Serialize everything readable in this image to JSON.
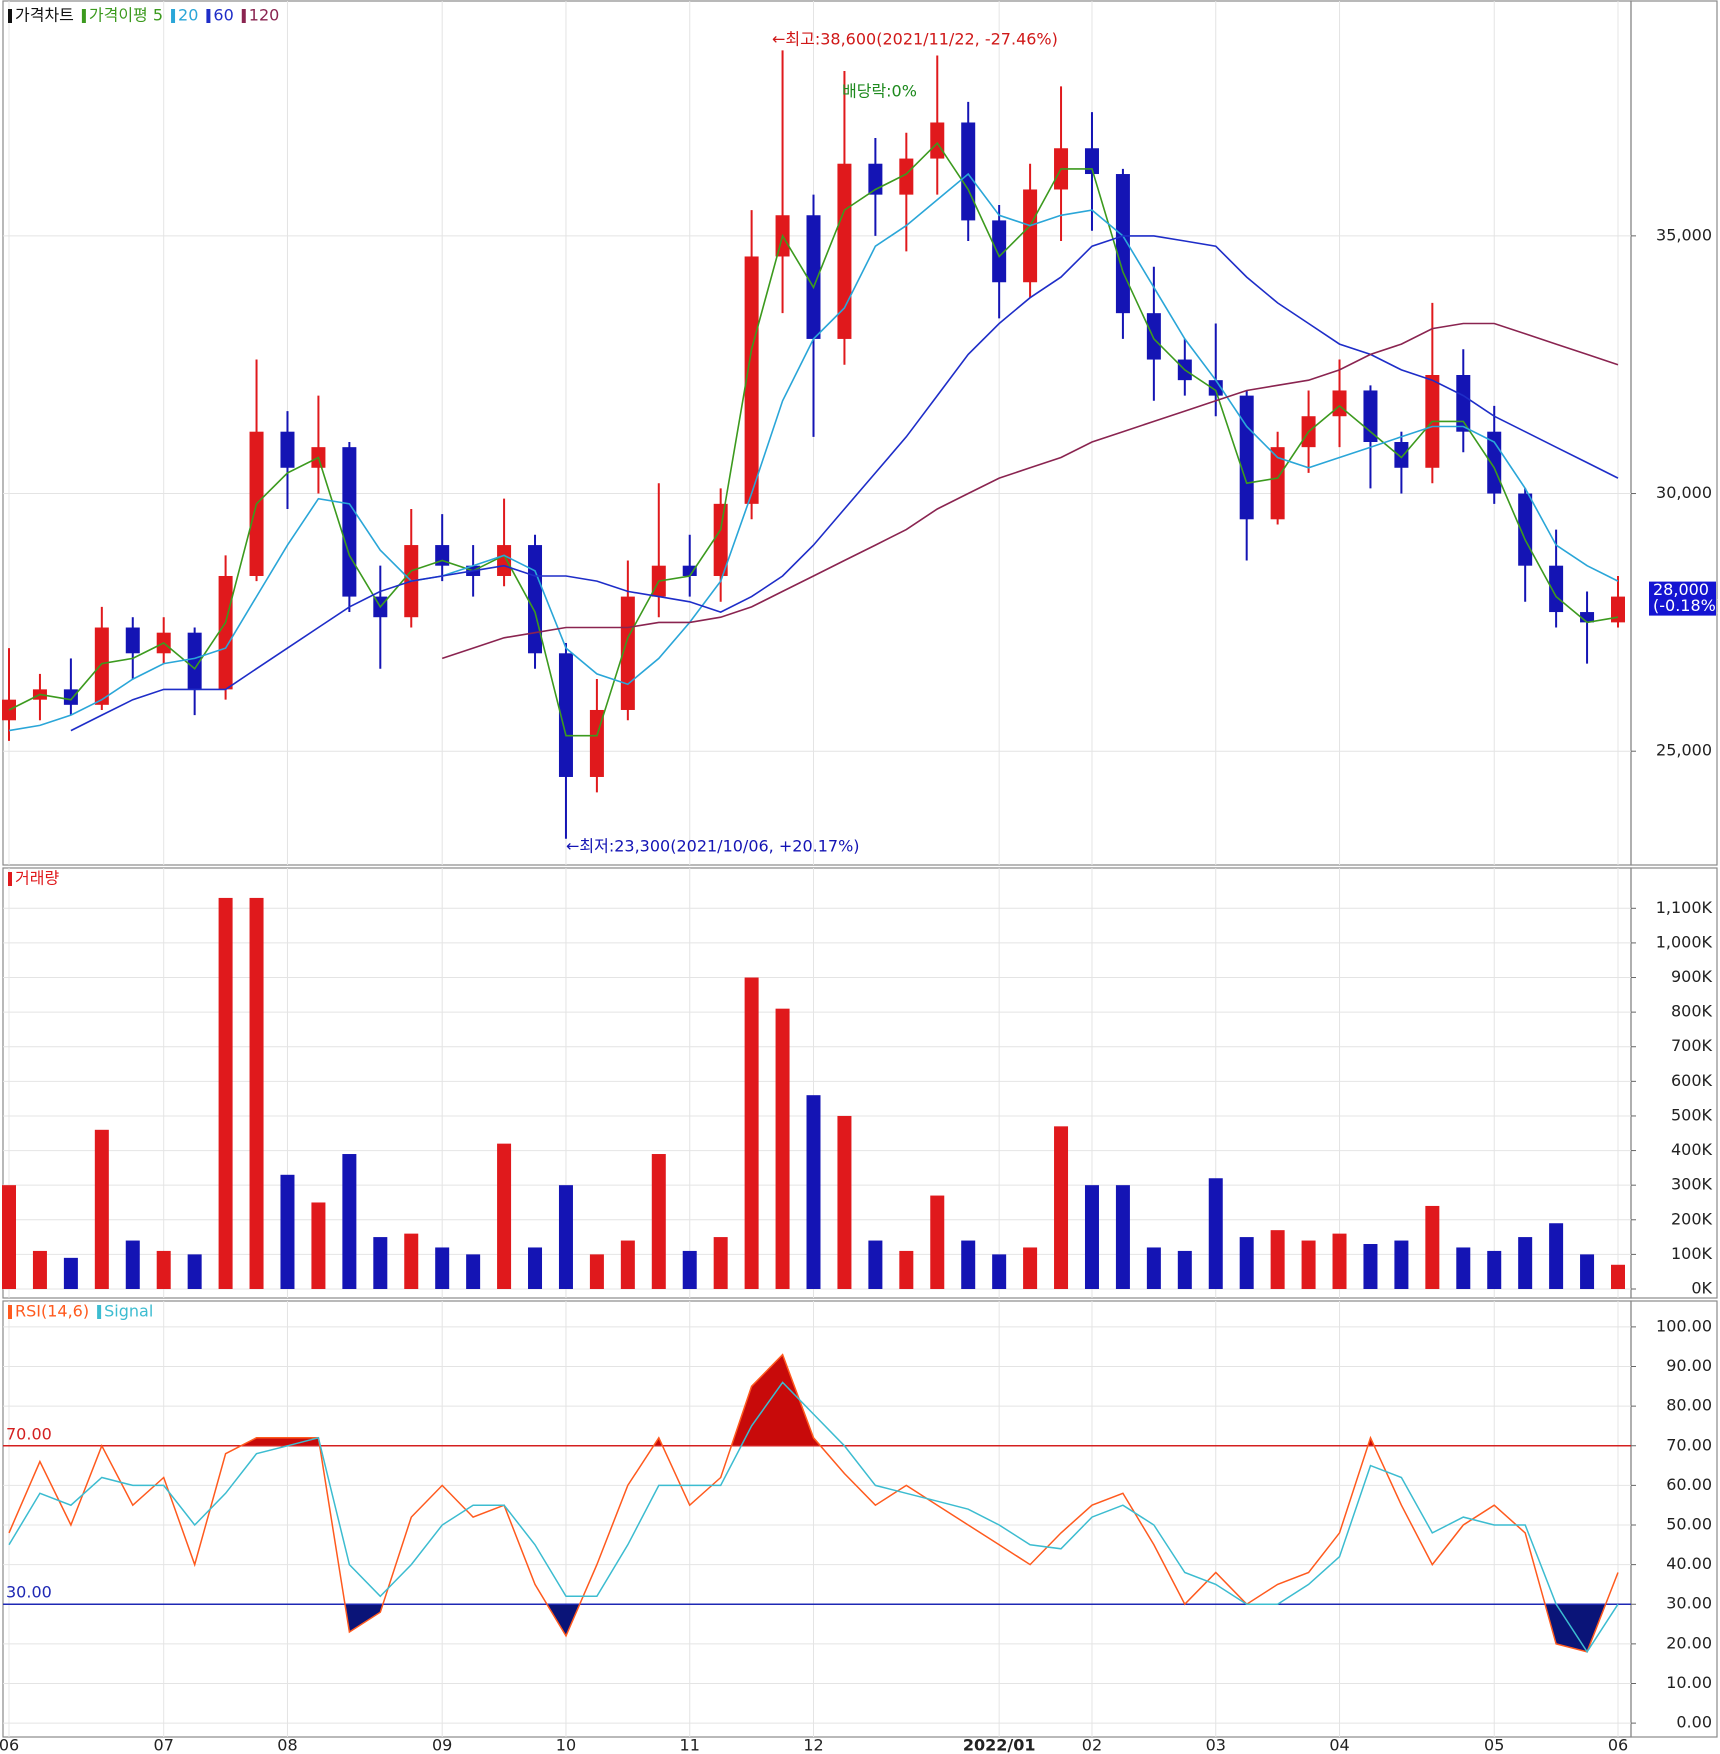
{
  "chart_data": [
    {
      "type": "candlestick",
      "name": "가격차트",
      "open": [
        25600,
        26000,
        26200,
        25900,
        27400,
        26900,
        27300,
        26200,
        28400,
        31200,
        30500,
        30900,
        28000,
        27600,
        29000,
        28600,
        28400,
        29000,
        26900,
        24500,
        25800,
        28000,
        28600,
        28400,
        29800,
        34600,
        35400,
        33000,
        36400,
        35800,
        36500,
        37200,
        35300,
        34100,
        35900,
        36700,
        36200,
        33500,
        32600,
        32200,
        31900,
        29500,
        30900,
        31500,
        32000,
        31000,
        30500,
        32300,
        31200,
        30000,
        28600,
        27700,
        27500
      ],
      "high": [
        27000,
        26500,
        26800,
        27800,
        27600,
        27600,
        27400,
        28800,
        32600,
        31600,
        31900,
        31000,
        28600,
        29700,
        29600,
        29000,
        29900,
        29200,
        27100,
        26400,
        28700,
        30200,
        29200,
        30100,
        35500,
        38600,
        35800,
        38200,
        36900,
        37000,
        38500,
        37600,
        35600,
        36400,
        37900,
        37400,
        36300,
        34400,
        33000,
        33300,
        32000,
        31200,
        32000,
        32600,
        32100,
        31200,
        33700,
        32800,
        31700,
        30100,
        29300,
        28100,
        28400
      ],
      "low": [
        25200,
        25600,
        25700,
        25800,
        26400,
        26700,
        25700,
        26000,
        28300,
        29700,
        30000,
        27700,
        26600,
        27400,
        28300,
        28000,
        28200,
        26600,
        23300,
        24200,
        25600,
        27600,
        28000,
        27900,
        29500,
        33500,
        31100,
        32500,
        35000,
        34700,
        35800,
        34900,
        33400,
        33800,
        34900,
        35100,
        33000,
        31800,
        31900,
        31500,
        28700,
        29400,
        30400,
        30900,
        30100,
        30000,
        30200,
        30800,
        29800,
        27900,
        27400,
        26700,
        27400
      ],
      "close": [
        26000,
        26200,
        25900,
        27400,
        26900,
        27300,
        26200,
        28400,
        31200,
        30500,
        30900,
        28000,
        27600,
        29000,
        28600,
        28400,
        29000,
        26900,
        24500,
        25800,
        28000,
        28600,
        28400,
        29800,
        34600,
        35400,
        33000,
        36400,
        35800,
        36500,
        37200,
        35300,
        34100,
        35900,
        36700,
        36200,
        33500,
        32600,
        32200,
        31900,
        29500,
        30900,
        31500,
        32000,
        31000,
        30500,
        32300,
        31200,
        30000,
        28600,
        27700,
        27500,
        28000
      ],
      "up_color": "#e0191c",
      "down_color": "#1414b4",
      "series": [
        {
          "name": "가격이평 5",
          "color": "#3c9a1e",
          "values": [
            25800,
            26100,
            26000,
            26700,
            26800,
            27100,
            26600,
            27500,
            29800,
            30400,
            30700,
            28800,
            27800,
            28500,
            28700,
            28500,
            28800,
            27700,
            25300,
            25300,
            27200,
            28300,
            28400,
            29300,
            32800,
            35000,
            34000,
            35500,
            35900,
            36200,
            36800,
            35900,
            34600,
            35200,
            36300,
            36300,
            34300,
            33000,
            32400,
            32000,
            30200,
            30300,
            31200,
            31700,
            31200,
            30700,
            31400,
            31400,
            30500,
            29100,
            28000,
            27500,
            27600
          ]
        },
        {
          "name": "20",
          "color": "#2aa6d8",
          "values": [
            25400,
            25500,
            25700,
            26000,
            26400,
            26700,
            26800,
            27000,
            28000,
            29000,
            29900,
            29800,
            28900,
            28300,
            28400,
            28600,
            28800,
            28500,
            27000,
            26500,
            26300,
            26800,
            27500,
            28300,
            30000,
            31800,
            33000,
            33600,
            34800,
            35200,
            35700,
            36200,
            35400,
            35200,
            35400,
            35500,
            35000,
            34000,
            33000,
            32200,
            31300,
            30700,
            30500,
            30700,
            30900,
            31100,
            31300,
            31300,
            31000,
            30100,
            29000,
            28600,
            28300
          ]
        },
        {
          "name": "60",
          "color": "#1e2dc8",
          "values": [
            null,
            null,
            25400,
            25700,
            26000,
            26200,
            26200,
            26200,
            26600,
            27000,
            27400,
            27800,
            28100,
            28300,
            28400,
            28500,
            28600,
            28400,
            28400,
            28300,
            28100,
            28000,
            27900,
            27700,
            28000,
            28400,
            29000,
            29700,
            30400,
            31100,
            31900,
            32700,
            33300,
            33800,
            34200,
            34800,
            35000,
            35000,
            34900,
            34800,
            34200,
            33700,
            33300,
            32900,
            32700,
            32400,
            32200,
            31900,
            31500,
            31200,
            30900,
            30600,
            30300
          ]
        },
        {
          "name": "120",
          "color": "#8a2450",
          "values": [
            null,
            null,
            null,
            null,
            null,
            null,
            null,
            null,
            null,
            null,
            null,
            null,
            null,
            null,
            26800,
            27000,
            27200,
            27300,
            27400,
            27400,
            27400,
            27500,
            27500,
            27600,
            27800,
            28100,
            28400,
            28700,
            29000,
            29300,
            29700,
            30000,
            30300,
            30500,
            30700,
            31000,
            31200,
            31400,
            31600,
            31800,
            32000,
            32100,
            32200,
            32400,
            32700,
            32900,
            33200,
            33300,
            33300,
            33100,
            32900,
            32700,
            32500
          ]
        }
      ],
      "ylim": [
        22850,
        39150
      ],
      "yticks": [
        {
          "value": 25000,
          "label": "25,000"
        },
        {
          "value": 30000,
          "label": "30,000"
        },
        {
          "value": 35000,
          "label": "35,000"
        }
      ],
      "grid": true,
      "current": {
        "value": 28000,
        "label": "28,000",
        "change": "(-0.18%)"
      },
      "annotations": {
        "high": "←최고:38,600(2021/11/22, -27.46%)",
        "dividend": "배당락:0%",
        "low": "←최저:23,300(2021/10/06, +20.17%)"
      }
    },
    {
      "type": "bar",
      "name": "거래량",
      "color": "#e0191c",
      "values": [
        300000,
        110000,
        90000,
        460000,
        140000,
        110000,
        100000,
        1130000,
        1130000,
        330000,
        250000,
        390000,
        150000,
        160000,
        120000,
        100000,
        420000,
        120000,
        300000,
        100000,
        140000,
        390000,
        110000,
        150000,
        900000,
        810000,
        560000,
        500000,
        140000,
        110000,
        270000,
        140000,
        100000,
        120000,
        470000,
        300000,
        300000,
        120000,
        110000,
        320000,
        150000,
        170000,
        140000,
        160000,
        130000,
        140000,
        240000,
        120000,
        110000,
        150000,
        190000,
        100000,
        70000
      ],
      "up_color": "#e0191c",
      "down_color": "#1414b4",
      "ylim": [
        0,
        1150000
      ],
      "yticks": [
        {
          "value": 0,
          "label": "0K"
        },
        {
          "value": 100000,
          "label": "100K"
        },
        {
          "value": 200000,
          "label": "200K"
        },
        {
          "value": 300000,
          "label": "300K"
        },
        {
          "value": 400000,
          "label": "400K"
        },
        {
          "value": 500000,
          "label": "500K"
        },
        {
          "value": 600000,
          "label": "600K"
        },
        {
          "value": 700000,
          "label": "700K"
        },
        {
          "value": 800000,
          "label": "800K"
        },
        {
          "value": 900000,
          "label": "900K"
        },
        {
          "value": 1000000,
          "label": "1,000K"
        },
        {
          "value": 1100000,
          "label": "1,100K"
        }
      ],
      "grid": true
    },
    {
      "type": "line",
      "categories": [
        "06",
        null,
        null,
        null,
        null,
        "07",
        null,
        null,
        null,
        "08",
        null,
        null,
        null,
        null,
        "09",
        null,
        null,
        null,
        "10",
        null,
        null,
        null,
        "11",
        null,
        null,
        null,
        "12",
        null,
        null,
        null,
        null,
        null,
        "2022/01",
        null,
        null,
        "02",
        null,
        null,
        null,
        "03",
        null,
        null,
        null,
        "04",
        null,
        null,
        null,
        null,
        "05",
        null,
        null,
        null,
        "06"
      ],
      "series": [
        {
          "name": "RSI(14,6)",
          "color": "#ff5a1e",
          "values": [
            48,
            66,
            50,
            70,
            55,
            62,
            40,
            68,
            72,
            72,
            72,
            23,
            28,
            52,
            60,
            52,
            55,
            35,
            22,
            40,
            60,
            72,
            55,
            62,
            85,
            93,
            72,
            63,
            55,
            60,
            55,
            50,
            45,
            40,
            48,
            55,
            58,
            45,
            30,
            38,
            30,
            35,
            38,
            48,
            72,
            55,
            40,
            50,
            55,
            48,
            20,
            18,
            38
          ]
        },
        {
          "name": "Signal",
          "color": "#3cbcd0",
          "values": [
            45,
            58,
            55,
            62,
            60,
            60,
            50,
            58,
            68,
            70,
            72,
            40,
            32,
            40,
            50,
            55,
            55,
            45,
            32,
            32,
            45,
            60,
            60,
            60,
            75,
            86,
            78,
            70,
            60,
            58,
            56,
            54,
            50,
            45,
            44,
            52,
            55,
            50,
            38,
            35,
            30,
            30,
            35,
            42,
            65,
            62,
            48,
            52,
            50,
            50,
            30,
            18,
            30
          ]
        }
      ],
      "ylim": [
        -3,
        103
      ],
      "yticks": [
        {
          "value": 0,
          "label": "0.00"
        },
        {
          "value": 10,
          "label": "10.00"
        },
        {
          "value": 20,
          "label": "20.00"
        },
        {
          "value": 30,
          "label": "30.00"
        },
        {
          "value": 40,
          "label": "40.00"
        },
        {
          "value": 50,
          "label": "50.00"
        },
        {
          "value": 60,
          "label": "60.00"
        },
        {
          "value": 70,
          "label": "70.00"
        },
        {
          "value": 80,
          "label": "80.00"
        },
        {
          "value": 90,
          "label": "90.00"
        },
        {
          "value": 100,
          "label": "100.00"
        }
      ],
      "ref_lines": [
        {
          "value": 70,
          "label": "70.00",
          "color": "#d42020",
          "fill": "#c80a0a"
        },
        {
          "value": 30,
          "label": "30.00",
          "color": "#1e28b4",
          "fill": "#0a1478"
        }
      ],
      "grid": true
    }
  ]
}
